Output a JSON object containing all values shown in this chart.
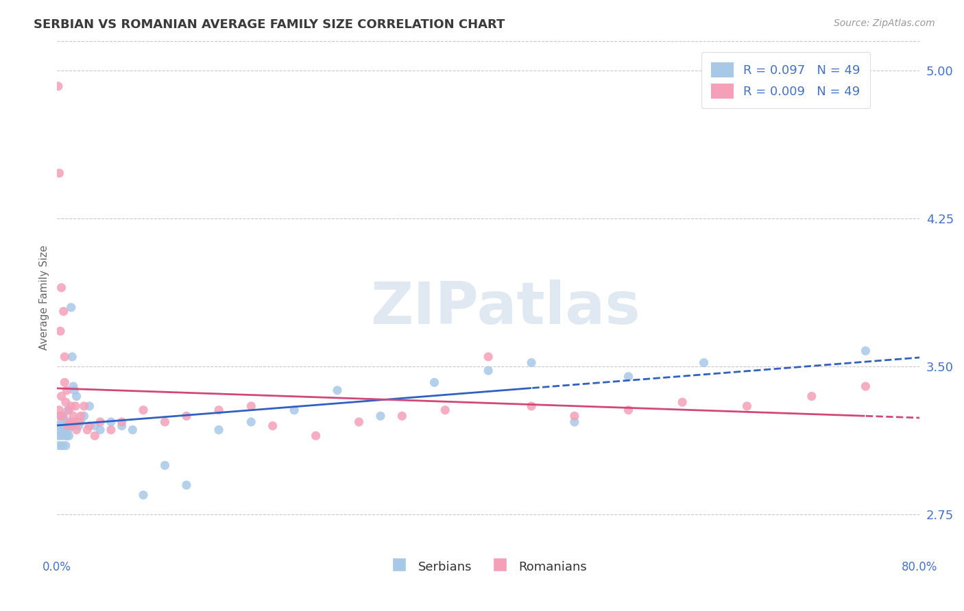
{
  "title": "SERBIAN VS ROMANIAN AVERAGE FAMILY SIZE CORRELATION CHART",
  "source": "Source: ZipAtlas.com",
  "xlabel": "",
  "ylabel": "Average Family Size",
  "xlim": [
    0.0,
    0.8
  ],
  "ylim": [
    2.55,
    5.15
  ],
  "yticks": [
    2.75,
    3.5,
    4.25,
    5.0
  ],
  "xtick_labels": [
    "0.0%",
    "80.0%"
  ],
  "background_color": "#ffffff",
  "grid_color": "#c8c8c8",
  "title_color": "#3a3a3a",
  "axis_color": "#4472c4",
  "legend_r_serbian": "R = 0.097",
  "legend_n_serbian": "N = 49",
  "legend_r_romanian": "R = 0.009",
  "legend_n_romanian": "N = 49",
  "serbian_color": "#a8c8e8",
  "romanian_color": "#f4a0b8",
  "serbian_line_color": "#3060c0",
  "romanian_line_color": "#d04878",
  "watermark": "ZIPatlas",
  "serbian_scatter": {
    "x": [
      0.001,
      0.002,
      0.002,
      0.003,
      0.003,
      0.004,
      0.004,
      0.005,
      0.005,
      0.006,
      0.006,
      0.007,
      0.008,
      0.008,
      0.009,
      0.009,
      0.01,
      0.01,
      0.011,
      0.012,
      0.013,
      0.014,
      0.015,
      0.016,
      0.018,
      0.02,
      0.022,
      0.025,
      0.03,
      0.035,
      0.04,
      0.05,
      0.06,
      0.07,
      0.08,
      0.1,
      0.12,
      0.15,
      0.18,
      0.22,
      0.26,
      0.3,
      0.35,
      0.4,
      0.44,
      0.48,
      0.53,
      0.6,
      0.75
    ],
    "y": [
      3.15,
      3.2,
      3.1,
      3.25,
      3.18,
      3.15,
      3.22,
      3.2,
      3.1,
      3.18,
      3.25,
      3.15,
      3.2,
      3.1,
      3.22,
      3.15,
      3.18,
      3.28,
      3.15,
      3.2,
      3.8,
      3.55,
      3.4,
      3.38,
      3.35,
      3.2,
      3.22,
      3.25,
      3.3,
      3.2,
      3.18,
      3.22,
      3.2,
      3.18,
      2.85,
      3.0,
      2.9,
      3.18,
      3.22,
      3.28,
      3.38,
      3.25,
      3.42,
      3.48,
      3.52,
      3.22,
      3.45,
      3.52,
      3.58
    ]
  },
  "romanian_scatter": {
    "x": [
      0.001,
      0.002,
      0.002,
      0.003,
      0.003,
      0.004,
      0.004,
      0.005,
      0.006,
      0.007,
      0.007,
      0.008,
      0.009,
      0.01,
      0.011,
      0.012,
      0.013,
      0.014,
      0.015,
      0.016,
      0.017,
      0.018,
      0.02,
      0.022,
      0.025,
      0.028,
      0.03,
      0.035,
      0.04,
      0.05,
      0.06,
      0.08,
      0.1,
      0.12,
      0.15,
      0.18,
      0.2,
      0.24,
      0.28,
      0.32,
      0.36,
      0.4,
      0.44,
      0.48,
      0.53,
      0.58,
      0.64,
      0.7,
      0.75
    ],
    "y": [
      4.92,
      4.48,
      3.28,
      3.68,
      3.25,
      3.9,
      3.35,
      3.25,
      3.78,
      3.55,
      3.42,
      3.32,
      3.38,
      3.2,
      3.28,
      3.22,
      3.3,
      3.2,
      3.25,
      3.22,
      3.3,
      3.18,
      3.22,
      3.25,
      3.3,
      3.18,
      3.2,
      3.15,
      3.22,
      3.18,
      3.22,
      3.28,
      3.22,
      3.25,
      3.28,
      3.3,
      3.2,
      3.15,
      3.22,
      3.25,
      3.28,
      3.55,
      3.3,
      3.25,
      3.28,
      3.32,
      3.3,
      3.35,
      3.4
    ]
  },
  "serbian_line_x_solid_end": 0.44,
  "romanian_line_x_solid_end": 0.75
}
